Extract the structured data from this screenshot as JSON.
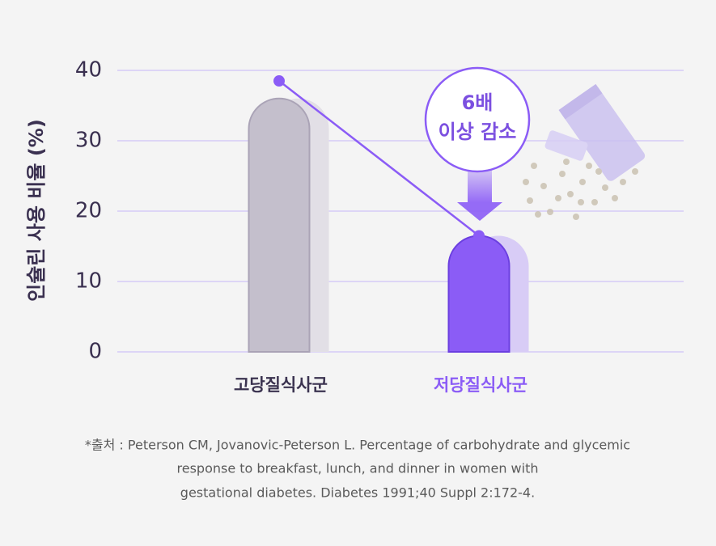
{
  "chart_data": {
    "type": "bar",
    "y_label": "인슐린 사용 비율 (%)",
    "categories": [
      "고당질식사군",
      "저당질식사군"
    ],
    "category_colors": [
      "#3b3350",
      "#8b5cf6"
    ],
    "series": [
      {
        "type": "bar",
        "colors": [
          "#c4bfcc",
          "#8b5cf6"
        ],
        "values": [
          36,
          16.5
        ]
      },
      {
        "type": "line",
        "color": "#8b5cf6",
        "values": [
          38.5,
          16.5
        ]
      }
    ],
    "ylim": [
      0,
      40
    ],
    "yticks": [
      0,
      10,
      20,
      30,
      40
    ],
    "grid": true,
    "annotation": [
      "6배",
      "이상 감소"
    ],
    "note": [
      "*출처 : Peterson CM, Jovanovic-Peterson L. Percentage of carbohydrate and glycemic",
      "response to breakfast, lunch, and dinner in women with",
      "gestational diabetes. Diabetes 1991;40 Suppl 2:172-4."
    ]
  }
}
